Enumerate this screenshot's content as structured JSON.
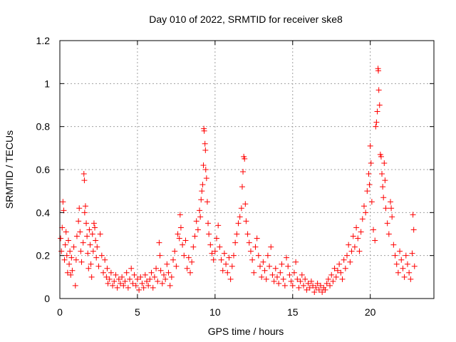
{
  "chart_data": {
    "type": "scatter",
    "title": "Day 010 of 2022, SRMTID for receiver ske8",
    "xlabel": "GPS time / hours",
    "ylabel": "SRMTID / TECUs",
    "xlim": [
      0,
      24.1
    ],
    "ylim": [
      0,
      1.2
    ],
    "xticks": [
      0,
      5,
      10,
      15,
      20
    ],
    "xtick_labels": [
      "0",
      "5",
      "10",
      "15",
      "20"
    ],
    "yticks": [
      0,
      0.2,
      0.4,
      0.6,
      0.8,
      1.0,
      1.2
    ],
    "ytick_labels": [
      "0",
      "0.2",
      "0.4",
      "0.6",
      "0.8",
      "1",
      "1.2"
    ],
    "grid": true,
    "marker": "+",
    "color": "#ff0000",
    "series": [
      {
        "name": "SRMTID",
        "points": [
          [
            0.05,
            0.28
          ],
          [
            0.1,
            0.22
          ],
          [
            0.15,
            0.33
          ],
          [
            0.2,
            0.45
          ],
          [
            0.25,
            0.41
          ],
          [
            0.3,
            0.18
          ],
          [
            0.35,
            0.25
          ],
          [
            0.4,
            0.31
          ],
          [
            0.45,
            0.2
          ],
          [
            0.5,
            0.12
          ],
          [
            0.55,
            0.27
          ],
          [
            0.6,
            0.16
          ],
          [
            0.65,
            0.22
          ],
          [
            0.7,
            0.11
          ],
          [
            0.75,
            0.19
          ],
          [
            0.8,
            0.13
          ],
          [
            0.9,
            0.24
          ],
          [
            1.0,
            0.06
          ],
          [
            1.05,
            0.18
          ],
          [
            1.1,
            0.29
          ],
          [
            1.2,
            0.36
          ],
          [
            1.25,
            0.42
          ],
          [
            1.3,
            0.31
          ],
          [
            1.35,
            0.22
          ],
          [
            1.4,
            0.17
          ],
          [
            1.5,
            0.26
          ],
          [
            1.55,
            0.58
          ],
          [
            1.58,
            0.55
          ],
          [
            1.6,
            0.4
          ],
          [
            1.65,
            0.43
          ],
          [
            1.7,
            0.35
          ],
          [
            1.75,
            0.29
          ],
          [
            1.8,
            0.21
          ],
          [
            1.85,
            0.14
          ],
          [
            1.9,
            0.32
          ],
          [
            1.95,
            0.25
          ],
          [
            2.0,
            0.16
          ],
          [
            2.05,
            0.1
          ],
          [
            2.1,
            0.3
          ],
          [
            2.15,
            0.22
          ],
          [
            2.2,
            0.35
          ],
          [
            2.25,
            0.33
          ],
          [
            2.3,
            0.27
          ],
          [
            2.35,
            0.19
          ],
          [
            2.4,
            0.24
          ],
          [
            2.5,
            0.15
          ],
          [
            2.6,
            0.3
          ],
          [
            2.7,
            0.2
          ],
          [
            2.8,
            0.12
          ],
          [
            2.9,
            0.18
          ],
          [
            3.0,
            0.1
          ],
          [
            3.05,
            0.14
          ],
          [
            3.1,
            0.07
          ],
          [
            3.2,
            0.09
          ],
          [
            3.3,
            0.12
          ],
          [
            3.4,
            0.06
          ],
          [
            3.5,
            0.08
          ],
          [
            3.6,
            0.11
          ],
          [
            3.7,
            0.05
          ],
          [
            3.8,
            0.09
          ],
          [
            3.9,
            0.07
          ],
          [
            4.0,
            0.1
          ],
          [
            4.1,
            0.06
          ],
          [
            4.2,
            0.08
          ],
          [
            4.3,
            0.12
          ],
          [
            4.4,
            0.05
          ],
          [
            4.5,
            0.09
          ],
          [
            4.6,
            0.14
          ],
          [
            4.7,
            0.07
          ],
          [
            4.8,
            0.11
          ],
          [
            4.9,
            0.06
          ],
          [
            5.0,
            0.09
          ],
          [
            5.1,
            0.04
          ],
          [
            5.2,
            0.1
          ],
          [
            5.3,
            0.07
          ],
          [
            5.4,
            0.05
          ],
          [
            5.5,
            0.11
          ],
          [
            5.6,
            0.08
          ],
          [
            5.7,
            0.06
          ],
          [
            5.8,
            0.09
          ],
          [
            5.9,
            0.12
          ],
          [
            6.0,
            0.05
          ],
          [
            6.1,
            0.1
          ],
          [
            6.2,
            0.14
          ],
          [
            6.3,
            0.08
          ],
          [
            6.4,
            0.26
          ],
          [
            6.45,
            0.2
          ],
          [
            6.5,
            0.13
          ],
          [
            6.6,
            0.07
          ],
          [
            6.7,
            0.11
          ],
          [
            6.8,
            0.09
          ],
          [
            6.9,
            0.16
          ],
          [
            7.0,
            0.12
          ],
          [
            7.1,
            0.06
          ],
          [
            7.2,
            0.1
          ],
          [
            7.3,
            0.18
          ],
          [
            7.4,
            0.22
          ],
          [
            7.5,
            0.15
          ],
          [
            7.6,
            0.3
          ],
          [
            7.7,
            0.28
          ],
          [
            7.75,
            0.39
          ],
          [
            7.8,
            0.33
          ],
          [
            7.9,
            0.25
          ],
          [
            8.0,
            0.2
          ],
          [
            8.1,
            0.27
          ],
          [
            8.2,
            0.14
          ],
          [
            8.3,
            0.19
          ],
          [
            8.4,
            0.12
          ],
          [
            8.5,
            0.17
          ],
          [
            8.6,
            0.24
          ],
          [
            8.7,
            0.29
          ],
          [
            8.8,
            0.36
          ],
          [
            8.9,
            0.32
          ],
          [
            9.0,
            0.41
          ],
          [
            9.05,
            0.38
          ],
          [
            9.1,
            0.46
          ],
          [
            9.15,
            0.5
          ],
          [
            9.2,
            0.53
          ],
          [
            9.25,
            0.62
          ],
          [
            9.28,
            0.79
          ],
          [
            9.3,
            0.78
          ],
          [
            9.35,
            0.72
          ],
          [
            9.38,
            0.69
          ],
          [
            9.4,
            0.6
          ],
          [
            9.45,
            0.56
          ],
          [
            9.5,
            0.45
          ],
          [
            9.55,
            0.35
          ],
          [
            9.6,
            0.3
          ],
          [
            9.7,
            0.25
          ],
          [
            9.8,
            0.21
          ],
          [
            9.9,
            0.18
          ],
          [
            10.0,
            0.22
          ],
          [
            10.1,
            0.28
          ],
          [
            10.2,
            0.34
          ],
          [
            10.3,
            0.24
          ],
          [
            10.4,
            0.18
          ],
          [
            10.5,
            0.13
          ],
          [
            10.6,
            0.21
          ],
          [
            10.7,
            0.16
          ],
          [
            10.8,
            0.12
          ],
          [
            10.9,
            0.19
          ],
          [
            11.0,
            0.09
          ],
          [
            11.1,
            0.15
          ],
          [
            11.2,
            0.2
          ],
          [
            11.3,
            0.26
          ],
          [
            11.4,
            0.3
          ],
          [
            11.5,
            0.35
          ],
          [
            11.6,
            0.38
          ],
          [
            11.7,
            0.42
          ],
          [
            11.75,
            0.52
          ],
          [
            11.8,
            0.59
          ],
          [
            11.85,
            0.66
          ],
          [
            11.9,
            0.65
          ],
          [
            11.95,
            0.44
          ],
          [
            12.0,
            0.36
          ],
          [
            12.1,
            0.3
          ],
          [
            12.2,
            0.26
          ],
          [
            12.3,
            0.22
          ],
          [
            12.4,
            0.18
          ],
          [
            12.5,
            0.12
          ],
          [
            12.6,
            0.24
          ],
          [
            12.7,
            0.28
          ],
          [
            12.8,
            0.2
          ],
          [
            12.9,
            0.15
          ],
          [
            13.0,
            0.1
          ],
          [
            13.1,
            0.17
          ],
          [
            13.2,
            0.13
          ],
          [
            13.3,
            0.09
          ],
          [
            13.4,
            0.2
          ],
          [
            13.5,
            0.15
          ],
          [
            13.6,
            0.24
          ],
          [
            13.7,
            0.11
          ],
          [
            13.8,
            0.08
          ],
          [
            13.9,
            0.14
          ],
          [
            14.0,
            0.1
          ],
          [
            14.1,
            0.07
          ],
          [
            14.2,
            0.12
          ],
          [
            14.3,
            0.16
          ],
          [
            14.4,
            0.09
          ],
          [
            14.5,
            0.06
          ],
          [
            14.6,
            0.19
          ],
          [
            14.7,
            0.15
          ],
          [
            14.8,
            0.11
          ],
          [
            14.9,
            0.08
          ],
          [
            15.0,
            0.06
          ],
          [
            15.1,
            0.12
          ],
          [
            15.2,
            0.17
          ],
          [
            15.3,
            0.09
          ],
          [
            15.4,
            0.05
          ],
          [
            15.5,
            0.08
          ],
          [
            15.6,
            0.11
          ],
          [
            15.7,
            0.06
          ],
          [
            15.8,
            0.09
          ],
          [
            15.9,
            0.04
          ],
          [
            16.0,
            0.07
          ],
          [
            16.1,
            0.05
          ],
          [
            16.2,
            0.08
          ],
          [
            16.3,
            0.06
          ],
          [
            16.4,
            0.03
          ],
          [
            16.5,
            0.05
          ],
          [
            16.6,
            0.07
          ],
          [
            16.7,
            0.04
          ],
          [
            16.8,
            0.06
          ],
          [
            16.9,
            0.03
          ],
          [
            17.0,
            0.05
          ],
          [
            17.1,
            0.04
          ],
          [
            17.2,
            0.07
          ],
          [
            17.3,
            0.09
          ],
          [
            17.4,
            0.06
          ],
          [
            17.5,
            0.11
          ],
          [
            17.6,
            0.08
          ],
          [
            17.7,
            0.14
          ],
          [
            17.8,
            0.1
          ],
          [
            17.9,
            0.13
          ],
          [
            18.0,
            0.16
          ],
          [
            18.1,
            0.12
          ],
          [
            18.2,
            0.09
          ],
          [
            18.3,
            0.18
          ],
          [
            18.4,
            0.14
          ],
          [
            18.5,
            0.2
          ],
          [
            18.6,
            0.25
          ],
          [
            18.7,
            0.17
          ],
          [
            18.8,
            0.22
          ],
          [
            18.9,
            0.29
          ],
          [
            19.0,
            0.24
          ],
          [
            19.1,
            0.33
          ],
          [
            19.2,
            0.28
          ],
          [
            19.3,
            0.22
          ],
          [
            19.4,
            0.31
          ],
          [
            19.5,
            0.37
          ],
          [
            19.6,
            0.43
          ],
          [
            19.7,
            0.4
          ],
          [
            19.8,
            0.5
          ],
          [
            19.9,
            0.58
          ],
          [
            19.95,
            0.53
          ],
          [
            20.0,
            0.71
          ],
          [
            20.05,
            0.63
          ],
          [
            20.1,
            0.45
          ],
          [
            20.2,
            0.32
          ],
          [
            20.3,
            0.27
          ],
          [
            20.35,
            0.8
          ],
          [
            20.4,
            0.82
          ],
          [
            20.45,
            0.87
          ],
          [
            20.5,
            1.07
          ],
          [
            20.52,
            1.06
          ],
          [
            20.55,
            0.97
          ],
          [
            20.6,
            0.9
          ],
          [
            20.65,
            0.67
          ],
          [
            20.7,
            0.66
          ],
          [
            20.75,
            0.58
          ],
          [
            20.8,
            0.52
          ],
          [
            20.85,
            0.47
          ],
          [
            20.9,
            0.63
          ],
          [
            20.95,
            0.55
          ],
          [
            21.0,
            0.42
          ],
          [
            21.1,
            0.35
          ],
          [
            21.2,
            0.3
          ],
          [
            21.3,
            0.45
          ],
          [
            21.35,
            0.42
          ],
          [
            21.4,
            0.38
          ],
          [
            21.5,
            0.25
          ],
          [
            21.6,
            0.2
          ],
          [
            21.7,
            0.16
          ],
          [
            21.8,
            0.12
          ],
          [
            21.9,
            0.22
          ],
          [
            22.0,
            0.18
          ],
          [
            22.1,
            0.14
          ],
          [
            22.2,
            0.1
          ],
          [
            22.3,
            0.2
          ],
          [
            22.4,
            0.16
          ],
          [
            22.5,
            0.12
          ],
          [
            22.6,
            0.09
          ],
          [
            22.7,
            0.21
          ],
          [
            22.75,
            0.39
          ],
          [
            22.8,
            0.32
          ],
          [
            22.85,
            0.15
          ]
        ]
      }
    ]
  }
}
